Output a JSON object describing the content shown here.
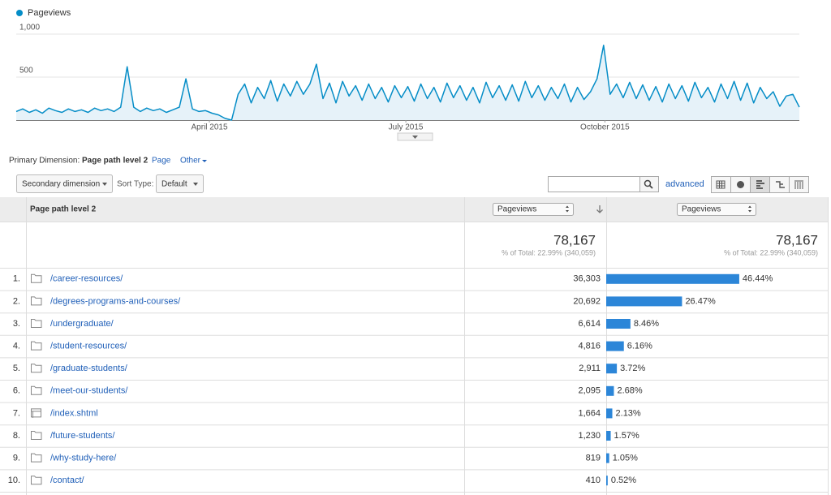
{
  "chart_data": {
    "type": "line",
    "series": [
      {
        "name": "Pageviews",
        "color": "#058dc7",
        "values": [
          100,
          130,
          90,
          120,
          80,
          140,
          110,
          90,
          130,
          100,
          120,
          90,
          140,
          110,
          130,
          100,
          150,
          620,
          150,
          100,
          140,
          110,
          130,
          90,
          120,
          150,
          480,
          130,
          100,
          110,
          80,
          60,
          20,
          0,
          300,
          420,
          200,
          380,
          250,
          460,
          220,
          420,
          280,
          450,
          300,
          420,
          650,
          250,
          430,
          200,
          450,
          280,
          400,
          230,
          420,
          250,
          380,
          210,
          400,
          260,
          390,
          220,
          420,
          250,
          380,
          210,
          430,
          260,
          400,
          230,
          380,
          200,
          440,
          260,
          400,
          230,
          410,
          220,
          450,
          260,
          400,
          230,
          380,
          250,
          420,
          210,
          380,
          240,
          330,
          480,
          870,
          300,
          420,
          260,
          440,
          250,
          410,
          230,
          390,
          210,
          420,
          250,
          400,
          220,
          440,
          260,
          380,
          210,
          420,
          250,
          450,
          230,
          430,
          200,
          380,
          250,
          330,
          160,
          280,
          300,
          150
        ]
      }
    ],
    "xlim": [
      0,
      120
    ],
    "xticks": [
      {
        "value": 29.6,
        "label": "April 2015"
      },
      {
        "value": 59.7,
        "label": "July 2015"
      },
      {
        "value": 90.2,
        "label": "October 2015"
      }
    ],
    "ylim": [
      0,
      1000
    ],
    "yticks": [
      {
        "value": 1000,
        "label": "1,000"
      },
      500
    ],
    "grid": true
  },
  "controls": {
    "primary_label": "Primary Dimension:",
    "primary_value": "Page path level 2",
    "options": [
      "Page",
      "Other"
    ],
    "secondary": "Secondary dimension",
    "sort_label": "Sort Type:",
    "sort_value": "Default",
    "advanced": "advanced"
  },
  "table": {
    "columns": [
      "Page path level 2",
      "Pageviews",
      "Pageviews"
    ],
    "totals": [
      {
        "value": "78,167",
        "note": "% of Total: 22.99% (340,059)"
      },
      {
        "value": "78,167",
        "note": "% of Total: 22.99% (340,059)"
      }
    ],
    "rows": [
      {
        "rank": "1.",
        "icon": "folder",
        "path": "/career-resources/",
        "pageviews": "36,303",
        "percent": 46.44,
        "percent_label": "46.44%"
      },
      {
        "rank": "2.",
        "icon": "folder",
        "path": "/degrees-programs-and-courses/",
        "pageviews": "20,692",
        "percent": 26.47,
        "percent_label": "26.47%"
      },
      {
        "rank": "3.",
        "icon": "folder",
        "path": "/undergraduate/",
        "pageviews": "6,614",
        "percent": 8.46,
        "percent_label": "8.46%"
      },
      {
        "rank": "4.",
        "icon": "folder",
        "path": "/student-resources/",
        "pageviews": "4,816",
        "percent": 6.16,
        "percent_label": "6.16%"
      },
      {
        "rank": "5.",
        "icon": "folder",
        "path": "/graduate-students/",
        "pageviews": "2,911",
        "percent": 3.72,
        "percent_label": "3.72%"
      },
      {
        "rank": "6.",
        "icon": "folder",
        "path": "/meet-our-students/",
        "pageviews": "2,095",
        "percent": 2.68,
        "percent_label": "2.68%"
      },
      {
        "rank": "7.",
        "icon": "page",
        "path": "/index.shtml",
        "pageviews": "1,664",
        "percent": 2.13,
        "percent_label": "2.13%"
      },
      {
        "rank": "8.",
        "icon": "folder",
        "path": "/future-students/",
        "pageviews": "1,230",
        "percent": 1.57,
        "percent_label": "1.57%"
      },
      {
        "rank": "9.",
        "icon": "folder",
        "path": "/why-study-here/",
        "pageviews": "819",
        "percent": 1.05,
        "percent_label": "1.05%"
      },
      {
        "rank": "10.",
        "icon": "folder",
        "path": "/contact/",
        "pageviews": "410",
        "percent": 0.52,
        "percent_label": "0.52%"
      }
    ]
  }
}
